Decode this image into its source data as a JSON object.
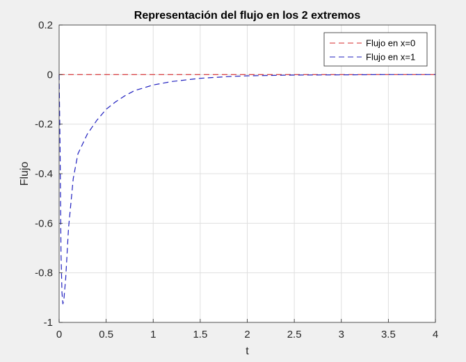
{
  "chart_data": {
    "type": "line",
    "title": "Representación del flujo en los 2 extremos",
    "xlabel": "t",
    "ylabel": "Flujo",
    "xlim": [
      0,
      4
    ],
    "ylim": [
      -1,
      0.2
    ],
    "xticks": [
      0,
      0.5,
      1,
      1.5,
      2,
      2.5,
      3,
      3.5,
      4
    ],
    "xtick_labels": [
      "0",
      "0.5",
      "1",
      "1.5",
      "2",
      "2.5",
      "3",
      "3.5",
      "4"
    ],
    "yticks": [
      -1,
      -0.8,
      -0.6,
      -0.4,
      -0.2,
      0,
      0.2
    ],
    "ytick_labels": [
      "-1",
      "-0.8",
      "-0.6",
      "-0.4",
      "-0.2",
      "0",
      "0.2"
    ],
    "grid": true,
    "legend_position": "top-right",
    "series": [
      {
        "name": "Flujo en x=0",
        "color": "#d62728",
        "style": "dashed",
        "x": [
          0,
          0.5,
          1,
          1.5,
          2,
          2.5,
          3,
          3.5,
          4
        ],
        "y": [
          0,
          0,
          0,
          0,
          0,
          0,
          0,
          0,
          0
        ]
      },
      {
        "name": "Flujo en x=1",
        "color": "#1f1fbf",
        "style": "dashed",
        "x": [
          0,
          0.01,
          0.02,
          0.03,
          0.04,
          0.05,
          0.07,
          0.1,
          0.15,
          0.2,
          0.3,
          0.4,
          0.5,
          0.6,
          0.7,
          0.8,
          1.0,
          1.2,
          1.5,
          1.8,
          2.0,
          2.5,
          3.0,
          3.5,
          4.0
        ],
        "y": [
          0,
          -0.3,
          -0.72,
          -0.88,
          -0.925,
          -0.91,
          -0.82,
          -0.62,
          -0.42,
          -0.32,
          -0.24,
          -0.185,
          -0.14,
          -0.11,
          -0.085,
          -0.065,
          -0.042,
          -0.028,
          -0.015,
          -0.008,
          -0.005,
          -0.002,
          -0.001,
          0,
          0
        ]
      }
    ]
  }
}
